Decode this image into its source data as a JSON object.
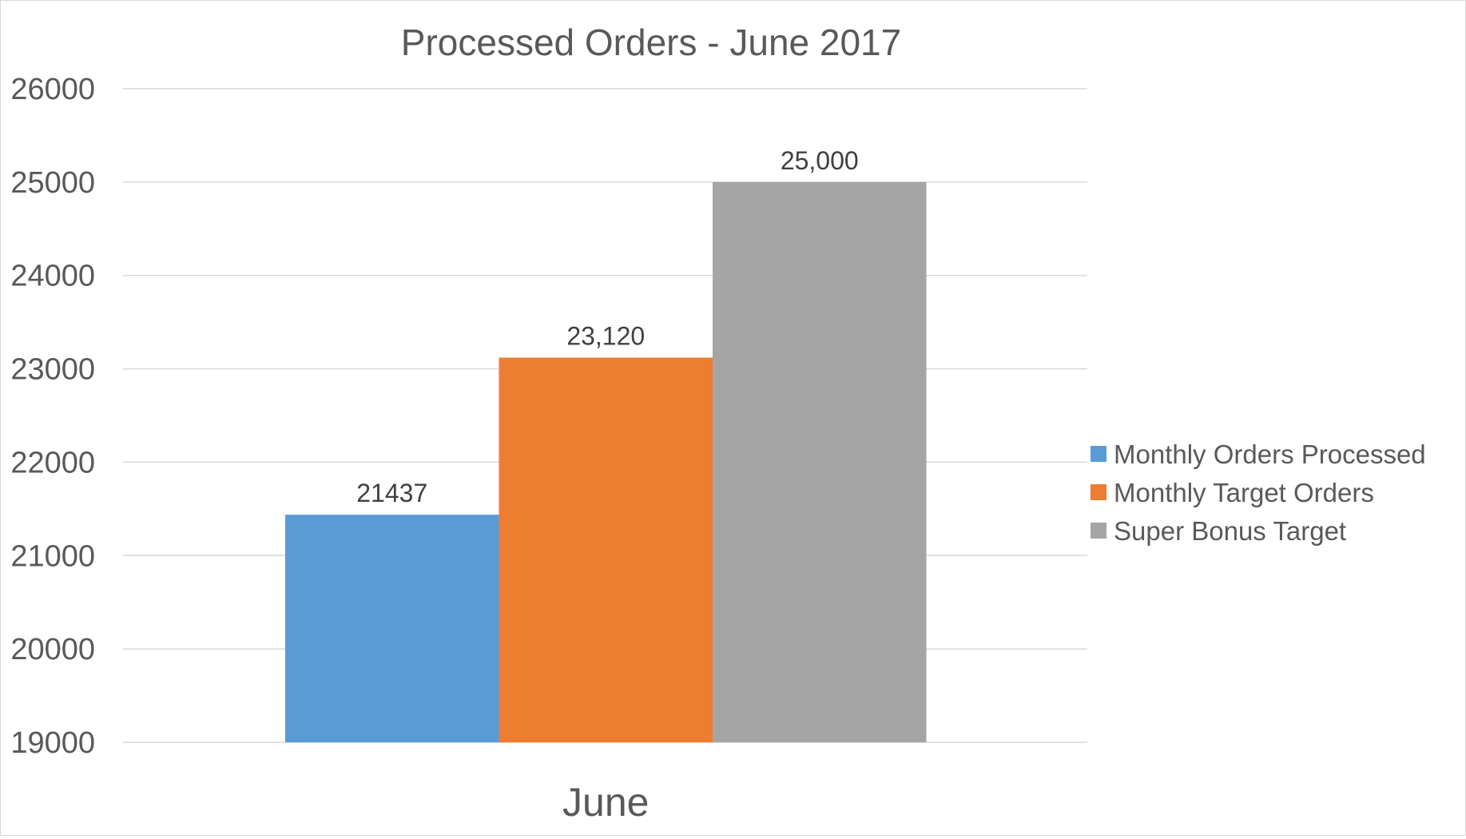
{
  "chart_data": {
    "type": "bar",
    "title": "Processed Orders - June 2017",
    "xlabel": "",
    "ylabel": "",
    "categories": [
      "June"
    ],
    "series": [
      {
        "name": "Monthly Orders Processed",
        "values": [
          21437
        ],
        "color": "#5B9BD5",
        "data_label": "21437"
      },
      {
        "name": "Monthly Target Orders",
        "values": [
          23120
        ],
        "color": "#ED7D31",
        "data_label": "23,120"
      },
      {
        "name": "Super Bonus Target",
        "values": [
          25000
        ],
        "color": "#A5A5A5",
        "data_label": "25,000"
      }
    ],
    "ylim": [
      19000,
      26000
    ],
    "yticks": [
      "19000",
      "20000",
      "21000",
      "22000",
      "23000",
      "24000",
      "25000",
      "26000"
    ],
    "grid": true,
    "legend_position": "right"
  }
}
